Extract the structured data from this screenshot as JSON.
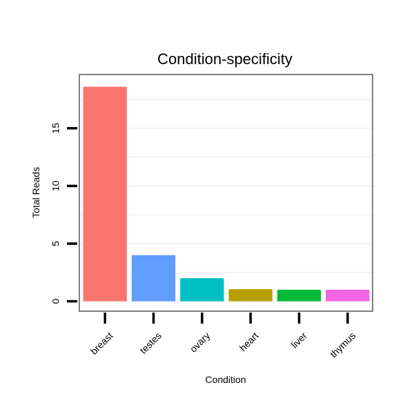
{
  "chart_data": {
    "type": "bar",
    "title": "Condition-specificity",
    "xlabel": "Condition",
    "ylabel": "Total Reads",
    "categories": [
      "breast",
      "testes",
      "ovary",
      "heart",
      "liver",
      "thymus"
    ],
    "values": [
      18.6,
      4.0,
      2.0,
      1.05,
      1.0,
      1.0
    ],
    "colors": [
      "#F8766D",
      "#619CFF",
      "#00BFC4",
      "#B79F00",
      "#00BA38",
      "#F564E3"
    ],
    "ylim": [
      -0.8,
      19.6
    ],
    "yticks": [
      0,
      5,
      10,
      15
    ],
    "ytick_labels": [
      "0",
      "5",
      "10",
      "15"
    ],
    "grid": true,
    "legend": "none"
  }
}
